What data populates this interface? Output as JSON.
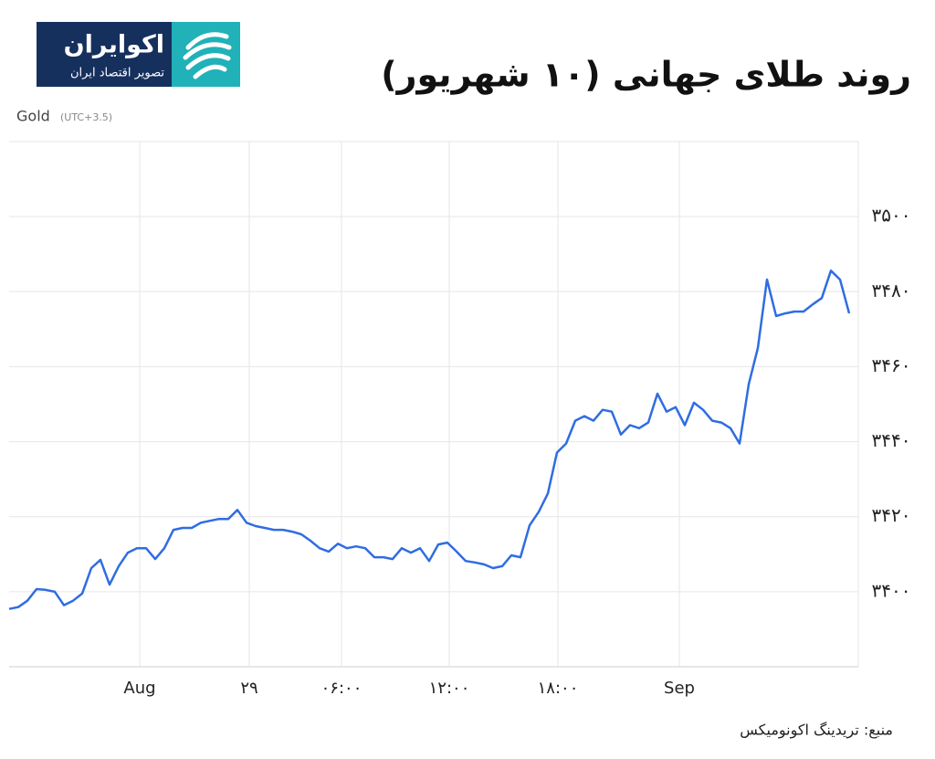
{
  "logo": {
    "name": "اکوایران",
    "tagline": "تصویر اقتصاد ایران"
  },
  "chart_data": {
    "type": "line",
    "title": "روند طلای جهانی (۱۰ شهریور)",
    "subtitle": "(UTC+3.5)",
    "source": "منبع: تریدینگ اکونومیکس",
    "series": [
      {
        "name": "Gold",
        "color": "#2f6de1",
        "values": [
          3395.4,
          3395.9,
          3397.6,
          3400.7,
          3400.5,
          3400,
          3396.4,
          3397.6,
          3399.5,
          3406.3,
          3408.5,
          3401.9,
          3406.8,
          3410.4,
          3411.6,
          3411.6,
          3408.7,
          3411.6,
          3416.5,
          3417,
          3417,
          3418.4,
          3418.9,
          3419.4,
          3419.4,
          3421.8,
          3418.4,
          3417.5,
          3417,
          3416.5,
          3416.5,
          3416,
          3415.3,
          3413.6,
          3411.6,
          3410.7,
          3412.8,
          3411.6,
          3412.1,
          3411.6,
          3409.2,
          3409.2,
          3408.7,
          3411.6,
          3410.4,
          3411.6,
          3408.2,
          3412.6,
          3413.1,
          3410.7,
          3408.2,
          3407.8,
          3407.3,
          3406.3,
          3406.8,
          3409.7,
          3409.2,
          3417.7,
          3421.3,
          3426.2,
          3437.1,
          3439.5,
          3445.6,
          3446.8,
          3445.6,
          3448.5,
          3448,
          3441.9,
          3444.4,
          3443.6,
          3445.1,
          3452.8,
          3448,
          3449.2,
          3444.4,
          3450.4,
          3448.5,
          3445.6,
          3445.1,
          3443.6,
          3439.5,
          3455.3,
          3465,
          3483.2,
          3473.5,
          3474.2,
          3474.7,
          3474.7,
          3476.6,
          3478.3,
          3485.6,
          3483.2,
          3474.2
        ]
      }
    ],
    "xlim": [
      0,
      93
    ],
    "xticks": [
      {
        "value": 14.3,
        "label": "Aug"
      },
      {
        "value": 26.3,
        "label": "۲۹"
      },
      {
        "value": 36.4,
        "label": "۰۶:۰۰"
      },
      {
        "value": 48.2,
        "label": "۱۲:۰۰"
      },
      {
        "value": 60.1,
        "label": "۱۸:۰۰"
      },
      {
        "value": 73.4,
        "label": "Sep"
      }
    ],
    "ylim": [
      3380,
      3520
    ],
    "yticks": [
      {
        "value": 3400,
        "label": "۳۴۰۰"
      },
      {
        "value": 3420,
        "label": "۳۴۲۰"
      },
      {
        "value": 3440,
        "label": "۳۴۴۰"
      },
      {
        "value": 3460,
        "label": "۳۴۶۰"
      },
      {
        "value": 3480,
        "label": "۳۴۸۰"
      },
      {
        "value": 3500,
        "label": "۳۵۰۰"
      }
    ],
    "grid": true
  }
}
